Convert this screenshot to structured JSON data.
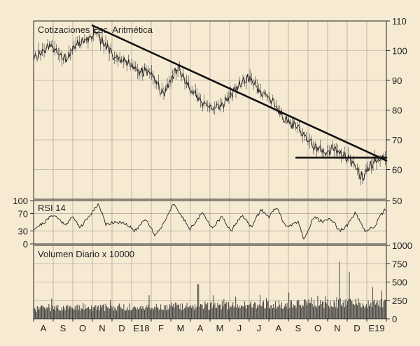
{
  "chart_data": [
    {
      "type": "line",
      "title": "Cotizaciones Esc. Aritmética",
      "x_months": [
        "A",
        "S",
        "O",
        "N",
        "D",
        "E18",
        "F",
        "M",
        "A",
        "M",
        "J",
        "J",
        "A",
        "S",
        "O",
        "N",
        "D",
        "E19"
      ],
      "y_ticks": [
        50,
        60,
        70,
        80,
        90,
        100,
        110
      ],
      "ylim": [
        50,
        110
      ],
      "grid": true,
      "price_keypoints": {
        "t": [
          0,
          0.9,
          1.6,
          2.2,
          2.8,
          3.2,
          3.6,
          4.2,
          4.8,
          5.4,
          6.0,
          6.6,
          7.0,
          7.4,
          8.0,
          8.6,
          9.2,
          9.8,
          10.4,
          11.0,
          11.6,
          12.2,
          12.8,
          13.6,
          14.2,
          14.8,
          15.3,
          15.8,
          16.3,
          16.8,
          17.1,
          17.5,
          17.9
        ],
        "v": [
          97,
          102,
          97,
          102,
          104,
          106,
          102,
          98,
          96,
          93,
          93,
          85,
          90,
          94,
          87,
          83,
          80,
          83,
          88,
          91,
          86,
          83,
          77,
          73,
          68,
          66,
          67,
          65,
          62,
          57,
          61,
          63,
          65
        ]
      },
      "annotations": [
        {
          "kind": "trendline",
          "from": [
            3.0,
            108.5
          ],
          "to": [
            18.0,
            63
          ]
        },
        {
          "kind": "support",
          "from": [
            13.4,
            64
          ],
          "to": [
            18.0,
            64
          ]
        }
      ]
    },
    {
      "type": "line",
      "title": "RSI 14",
      "y_ticks_left": [
        0,
        30,
        70,
        100
      ],
      "y_ticks_right": [
        50
      ],
      "ylim": [
        0,
        100
      ],
      "rsi_keypoints": {
        "t": [
          0,
          0.5,
          1.0,
          1.6,
          2.0,
          2.4,
          2.9,
          3.3,
          3.7,
          4.2,
          4.7,
          5.2,
          5.7,
          6.2,
          6.6,
          7.1,
          7.5,
          8.0,
          8.6,
          9.1,
          9.6,
          10.1,
          10.6,
          11.1,
          11.6,
          12.0,
          12.4,
          12.8,
          13.1,
          13.5,
          13.8,
          14.3,
          14.7,
          15.2,
          15.6,
          16.0,
          16.4,
          16.9,
          17.4,
          17.9
        ],
        "v": [
          35,
          48,
          68,
          45,
          62,
          38,
          68,
          93,
          45,
          52,
          45,
          30,
          60,
          20,
          45,
          92,
          68,
          35,
          72,
          38,
          62,
          30,
          68,
          38,
          80,
          62,
          85,
          45,
          40,
          52,
          10,
          62,
          52,
          58,
          30,
          42,
          72,
          28,
          42,
          78
        ]
      }
    },
    {
      "type": "bar",
      "title": "Volumen Diario x 10000",
      "y_ticks": [
        0,
        250,
        500,
        750,
        1000
      ],
      "ylim": [
        0,
        1000
      ],
      "volume_profile": {
        "base": 120,
        "noise": 90,
        "spikes": [
          {
            "t": 8.4,
            "v": 470
          },
          {
            "t": 10.3,
            "v": 300
          },
          {
            "t": 15.6,
            "v": 780
          },
          {
            "t": 16.1,
            "v": 640
          },
          {
            "t": 17.3,
            "v": 430
          }
        ]
      }
    }
  ]
}
